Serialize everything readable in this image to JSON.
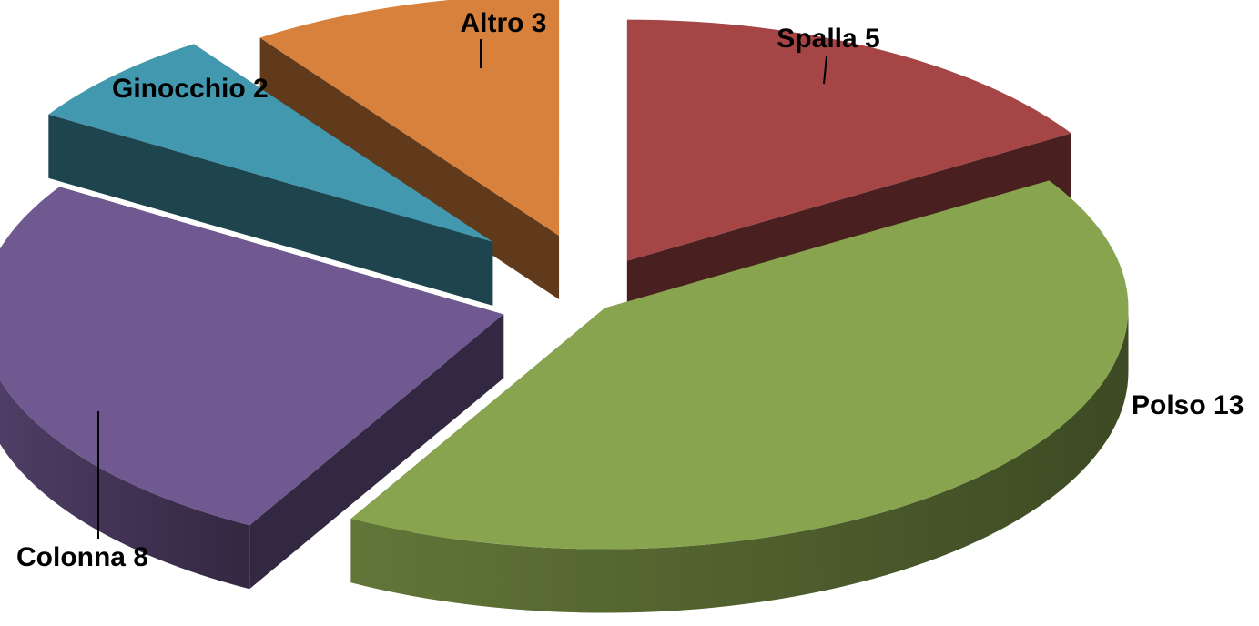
{
  "chart_data": {
    "type": "pie",
    "three_d": true,
    "exploded": true,
    "categories": [
      "Spalla",
      "Polso",
      "Colonna",
      "Ginocchio",
      "Altro"
    ],
    "values": [
      5,
      13,
      8,
      2,
      3
    ],
    "labels": [
      "Spalla 5",
      "Polso 13",
      "Colonna 8",
      "Ginocchio 2",
      "Altro 3"
    ],
    "colors": [
      "#A54545",
      "#88A44E",
      "#705890",
      "#4298AE",
      "#D8813C"
    ],
    "legend": "none",
    "title": ""
  }
}
